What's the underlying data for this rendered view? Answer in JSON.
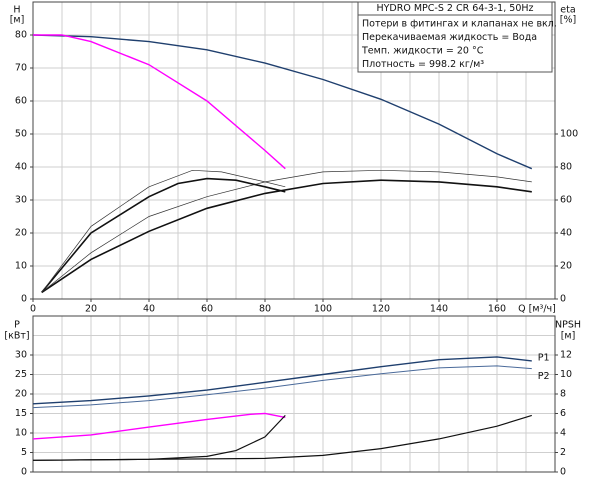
{
  "chart_data": [
    {
      "type": "line",
      "ylabel": [
        "H",
        "[м]"
      ],
      "y2label": [
        "eta",
        "[%]"
      ],
      "xlabel": "Q [м³/ч]",
      "annotations": [
        "HYDRO MPC-S 2 CR 64-3-1, 50Hz",
        "Потери в фитингах и клапанах не вкл.",
        "Перекачиваемая жидкость = Вода",
        "Темп. жидкости = 20 °C",
        "Плотность = 998.2 кг/м³"
      ],
      "xlim": [
        0,
        180
      ],
      "ylim": [
        0,
        90
      ],
      "y2lim": [
        0,
        180
      ],
      "xticks": [
        0,
        20,
        40,
        60,
        80,
        100,
        120,
        140,
        160
      ],
      "yticks": [
        0,
        10,
        20,
        30,
        40,
        50,
        60,
        70,
        80
      ],
      "y2ticks": [
        0,
        20,
        40,
        60,
        80,
        100
      ],
      "xgrid": [
        0,
        10,
        20,
        30,
        40,
        50,
        60,
        70,
        80,
        90,
        100,
        110,
        120,
        130,
        140,
        150,
        160,
        170,
        180
      ],
      "ygrid": [
        0,
        10,
        20,
        30,
        40,
        50,
        60,
        70,
        80,
        90
      ],
      "grid": true,
      "series": [
        {
          "color": "#1f3f6e",
          "width": 1.4,
          "x": [
            0,
            20,
            40,
            60,
            80,
            100,
            120,
            140,
            160,
            172
          ],
          "values": [
            80,
            79.5,
            78,
            75.5,
            71.5,
            66.5,
            60.5,
            53,
            44,
            39.5
          ]
        },
        {
          "color": "#ff00ff",
          "width": 1.4,
          "x": [
            0,
            10,
            20,
            40,
            60,
            80,
            87
          ],
          "values": [
            80,
            80,
            78,
            71,
            60,
            45,
            39.5
          ]
        },
        {
          "axis": "y2",
          "color": "#111111",
          "width": 1.6,
          "x": [
            3,
            20,
            40,
            60,
            80,
            100,
            120,
            140,
            160,
            172
          ],
          "values": [
            4,
            24,
            41,
            55,
            64,
            70,
            72,
            71,
            68,
            65
          ]
        },
        {
          "axis": "y2",
          "color": "#333333",
          "width": 0.7,
          "x": [
            3,
            20,
            40,
            60,
            80,
            100,
            120,
            140,
            160,
            172
          ],
          "values": [
            4,
            28,
            50,
            62,
            71,
            77,
            78,
            77,
            74,
            71
          ]
        },
        {
          "axis": "y2",
          "color": "#111111",
          "width": 1.6,
          "x": [
            3,
            20,
            40,
            50,
            60,
            70,
            80,
            87
          ],
          "values": [
            4,
            40,
            62,
            70,
            73,
            72,
            68,
            65
          ]
        },
        {
          "axis": "y2",
          "color": "#333333",
          "width": 0.7,
          "x": [
            3,
            20,
            40,
            55,
            65,
            80,
            87
          ],
          "values": [
            4,
            44,
            68,
            78,
            77,
            71,
            68
          ]
        }
      ]
    },
    {
      "type": "line",
      "ylabel": [
        "P",
        "[кВт]"
      ],
      "y2label": [
        "NPSH",
        "[м]"
      ],
      "xlim": [
        0,
        180
      ],
      "ylim": [
        0,
        40
      ],
      "y2lim": [
        0,
        16
      ],
      "yticks": [
        0,
        5,
        10,
        15,
        20,
        25,
        30
      ],
      "y2ticks": [
        0,
        2,
        4,
        6,
        8,
        10,
        12
      ],
      "xgrid": [
        0,
        10,
        20,
        30,
        40,
        50,
        60,
        70,
        80,
        90,
        100,
        110,
        120,
        130,
        140,
        150,
        160,
        170,
        180
      ],
      "ygrid": [
        0,
        5,
        10,
        15,
        20,
        25,
        30,
        35,
        40
      ],
      "grid": true,
      "series": [
        {
          "name": "P1",
          "color": "#1f3f6e",
          "width": 1.4,
          "x": [
            0,
            20,
            40,
            60,
            80,
            100,
            120,
            140,
            160,
            172
          ],
          "values": [
            17.5,
            18.3,
            19.5,
            21,
            23,
            25,
            27,
            28.8,
            29.5,
            28.5
          ]
        },
        {
          "name": "P2",
          "color": "#4a6a9a",
          "width": 1,
          "x": [
            0,
            20,
            40,
            60,
            80,
            100,
            120,
            140,
            160,
            172
          ],
          "values": [
            16.5,
            17.2,
            18.3,
            19.8,
            21.5,
            23.5,
            25.2,
            26.7,
            27.2,
            26.5
          ]
        },
        {
          "color": "#ff00ff",
          "width": 1.4,
          "x": [
            0,
            20,
            40,
            60,
            75,
            80,
            87
          ],
          "values": [
            8.5,
            9.5,
            11.5,
            13.5,
            14.8,
            15,
            14
          ]
        },
        {
          "axis": "y2",
          "color": "#111111",
          "width": 1.2,
          "x": [
            0,
            40,
            80,
            100,
            120,
            140,
            160,
            172
          ],
          "values": [
            1.2,
            1.3,
            1.4,
            1.7,
            2.4,
            3.4,
            4.7,
            5.8
          ]
        },
        {
          "axis": "y2",
          "color": "#111111",
          "width": 1.2,
          "x": [
            0,
            40,
            60,
            70,
            80,
            87
          ],
          "values": [
            1.2,
            1.3,
            1.6,
            2.2,
            3.6,
            5.8
          ]
        }
      ]
    }
  ]
}
